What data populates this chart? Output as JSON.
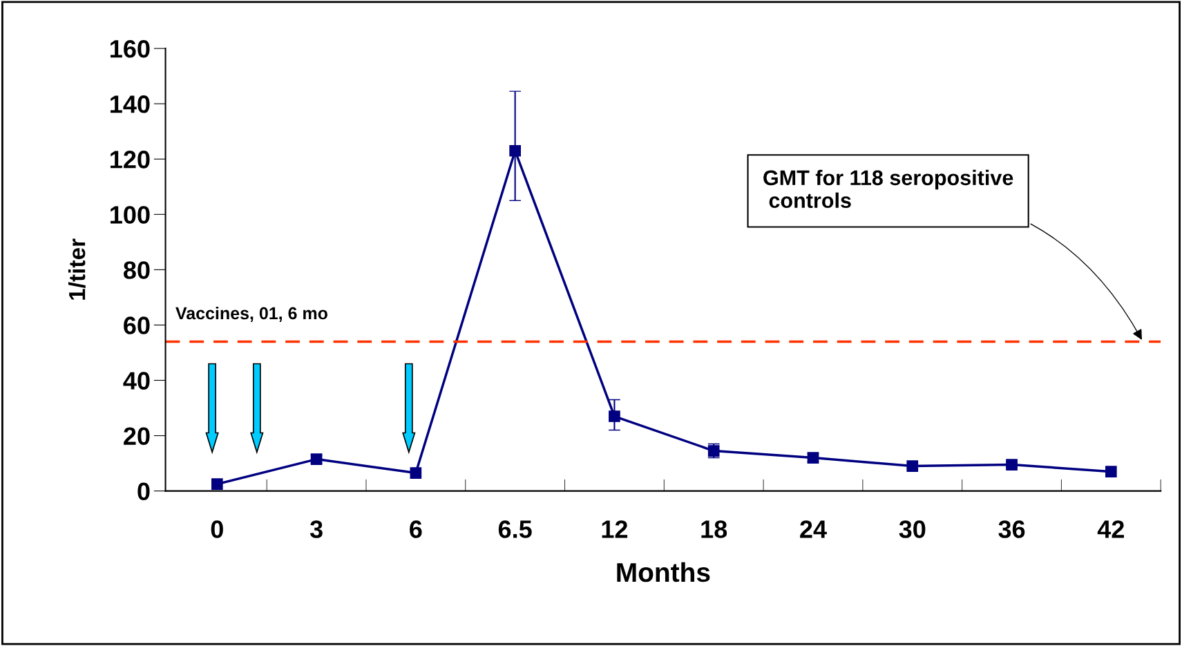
{
  "chart_data": {
    "type": "line",
    "xlabel": "Months",
    "ylabel": "1/titer",
    "categories": [
      "0",
      "3",
      "6",
      "6.5",
      "12",
      "18",
      "24",
      "30",
      "36",
      "42"
    ],
    "series": [
      {
        "color": "#000080",
        "values": [
          2.5,
          11.5,
          6.5,
          123,
          27,
          14.5,
          12,
          9,
          9.5,
          7
        ],
        "errors": [
          null,
          1.5,
          null,
          [
            105,
            144.5
          ],
          [
            22,
            33
          ],
          2.5,
          1.5,
          1,
          1,
          null
        ]
      }
    ],
    "ylim": [
      0,
      160
    ],
    "yticks": [
      0,
      20,
      40,
      60,
      80,
      100,
      120,
      140,
      160
    ],
    "marker": "square",
    "line_style": "solid",
    "grid": false,
    "ref_lines": [
      {
        "axis": "y",
        "value": 54,
        "label": "GMT for 118 seropositive\n controls",
        "color": "#ff3300",
        "line_style": "dashed"
      }
    ],
    "annotations": [
      "Vaccines, 01, 6 mo"
    ]
  }
}
